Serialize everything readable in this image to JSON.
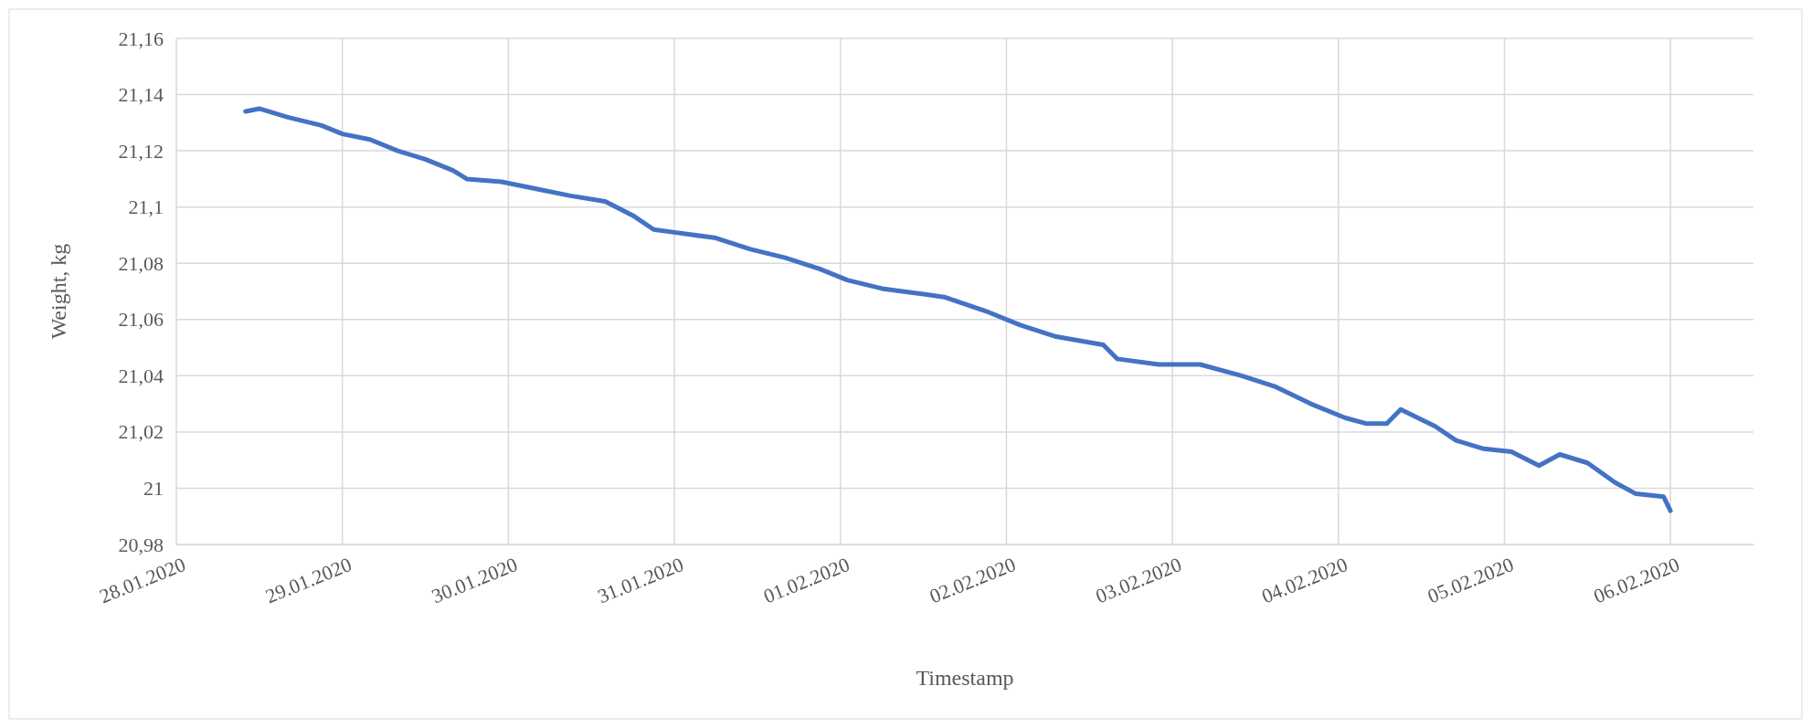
{
  "chart_data": {
    "type": "line",
    "xlabel": "Timestamp",
    "ylabel": "Weight, kg",
    "x": [
      "2020-01-28T10:00",
      "2020-01-28T12:00",
      "2020-01-28T16:00",
      "2020-01-28T21:00",
      "2020-01-29T00:00",
      "2020-01-29T04:00",
      "2020-01-29T08:00",
      "2020-01-29T12:00",
      "2020-01-29T16:00",
      "2020-01-29T18:00",
      "2020-01-29T23:00",
      "2020-01-30T05:00",
      "2020-01-30T09:00",
      "2020-01-30T14:00",
      "2020-01-30T18:00",
      "2020-01-30T21:00",
      "2020-01-31T00:00",
      "2020-01-31T06:00",
      "2020-01-31T11:00",
      "2020-01-31T16:00",
      "2020-01-31T21:00",
      "2020-02-01T01:00",
      "2020-02-01T06:00",
      "2020-02-01T15:00",
      "2020-02-01T21:00",
      "2020-02-02T02:00",
      "2020-02-02T07:00",
      "2020-02-02T14:00",
      "2020-02-02T16:00",
      "2020-02-02T22:00",
      "2020-02-03T04:00",
      "2020-02-03T10:00",
      "2020-02-03T15:00",
      "2020-02-03T20:00",
      "2020-02-04T01:00",
      "2020-02-04T04:00",
      "2020-02-04T07:00",
      "2020-02-04T09:00",
      "2020-02-04T14:00",
      "2020-02-04T17:00",
      "2020-02-04T21:00",
      "2020-02-05T01:00",
      "2020-02-05T05:00",
      "2020-02-05T08:00",
      "2020-02-05T12:00",
      "2020-02-05T16:00",
      "2020-02-05T19:00",
      "2020-02-05T23:00",
      "2020-02-06T00:00"
    ],
    "series": [
      {
        "color": "#4472c4",
        "values": [
          21.134,
          21.135,
          21.132,
          21.129,
          21.126,
          21.124,
          21.12,
          21.117,
          21.113,
          21.11,
          21.109,
          21.106,
          21.104,
          21.102,
          21.097,
          21.092,
          21.091,
          21.089,
          21.085,
          21.082,
          21.078,
          21.074,
          21.071,
          21.068,
          21.063,
          21.058,
          21.054,
          21.051,
          21.046,
          21.044,
          21.044,
          21.04,
          21.036,
          21.03,
          21.025,
          21.023,
          21.023,
          21.028,
          21.022,
          21.017,
          21.014,
          21.013,
          21.008,
          21.012,
          21.009,
          21.002,
          20.998,
          20.997,
          20.992
        ]
      }
    ],
    "xlim": [
      "2020-01-28",
      "2020-02-06T12:00"
    ],
    "xticks": [
      {
        "value": "2020-01-28",
        "label": "28.01.2020"
      },
      {
        "value": "2020-01-29",
        "label": "29.01.2020"
      },
      {
        "value": "2020-01-30",
        "label": "30.01.2020"
      },
      {
        "value": "2020-01-31",
        "label": "31.01.2020"
      },
      {
        "value": "2020-02-01",
        "label": "01.02.2020"
      },
      {
        "value": "2020-02-02",
        "label": "02.02.2020"
      },
      {
        "value": "2020-02-03",
        "label": "03.02.2020"
      },
      {
        "value": "2020-02-04",
        "label": "04.02.2020"
      },
      {
        "value": "2020-02-05",
        "label": "05.02.2020"
      },
      {
        "value": "2020-02-06",
        "label": "06.02.2020"
      }
    ],
    "ylim": [
      20.98,
      21.16
    ],
    "yticks": [
      {
        "value": 20.98,
        "label": "20,98"
      },
      {
        "value": 21,
        "label": "21"
      },
      {
        "value": 21.02,
        "label": "21,02"
      },
      {
        "value": 21.04,
        "label": "21,04"
      },
      {
        "value": 21.06,
        "label": "21,06"
      },
      {
        "value": 21.08,
        "label": "21,08"
      },
      {
        "value": 21.1,
        "label": "21,1"
      },
      {
        "value": 21.12,
        "label": "21,12"
      },
      {
        "value": 21.14,
        "label": "21,14"
      },
      {
        "value": 21.16,
        "label": "21,16"
      }
    ],
    "grid": true,
    "marker": "none",
    "line_style": "solid"
  }
}
